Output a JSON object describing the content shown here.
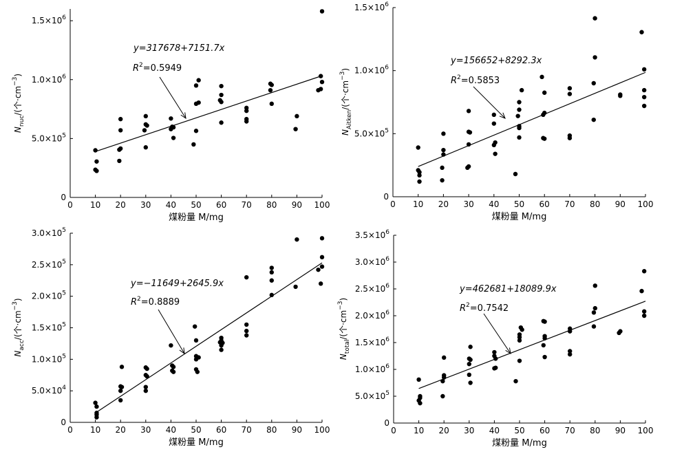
{
  "chart_data": [
    {
      "type": "scatter",
      "panel": "top-left",
      "ylabel_main": "N",
      "ylabel_sub": "nuc",
      "ylabel_rest": "/(个·cm",
      "ylabel_exp": "−3",
      "ylabel_close": ")",
      "xlabel": "煤粉量 M/mg",
      "xlim": [
        0,
        100
      ],
      "ylim": [
        0,
        1600000
      ],
      "xticks": [
        "0",
        "10",
        "20",
        "30",
        "40",
        "50",
        "60",
        "70",
        "80",
        "90",
        "100"
      ],
      "yticks": [
        {
          "value": 0,
          "mant": "0",
          "exp": ""
        },
        {
          "value": 500000,
          "mant": "5.0×10",
          "exp": "5"
        },
        {
          "value": 1000000,
          "mant": "1.0×10",
          "exp": "6"
        },
        {
          "value": 1500000,
          "mant": "1.5×10",
          "exp": "6"
        }
      ],
      "fit": {
        "intercept": 317678,
        "slope": 7151.7,
        "x_range": [
          10,
          100
        ]
      },
      "equation": "y=317678+7151.7x",
      "r2_label": "R",
      "r2_exp": "2",
      "r2_value": "=0.5949",
      "points": [
        [
          10,
          400000
        ],
        [
          10.5,
          305000
        ],
        [
          10,
          235000
        ],
        [
          10.5,
          225000
        ],
        [
          20,
          665000
        ],
        [
          20,
          570000
        ],
        [
          20,
          415000
        ],
        [
          19.5,
          405000
        ],
        [
          19.5,
          310000
        ],
        [
          30,
          690000
        ],
        [
          30,
          620000
        ],
        [
          30.5,
          610000
        ],
        [
          29.5,
          570000
        ],
        [
          30,
          425000
        ],
        [
          40,
          670000
        ],
        [
          40.5,
          600000
        ],
        [
          40,
          580000
        ],
        [
          41,
          595000
        ],
        [
          41,
          505000
        ],
        [
          51,
          995000
        ],
        [
          50,
          950000
        ],
        [
          51,
          805000
        ],
        [
          50,
          795000
        ],
        [
          50,
          565000
        ],
        [
          49,
          450000
        ],
        [
          60,
          945000
        ],
        [
          60,
          870000
        ],
        [
          59.5,
          825000
        ],
        [
          60,
          810000
        ],
        [
          60,
          635000
        ],
        [
          70,
          760000
        ],
        [
          70,
          735000
        ],
        [
          70,
          665000
        ],
        [
          70,
          645000
        ],
        [
          79.5,
          965000
        ],
        [
          79.5,
          910000
        ],
        [
          80,
          955000
        ],
        [
          80,
          795000
        ],
        [
          90,
          690000
        ],
        [
          89.5,
          580000
        ],
        [
          100,
          1580000
        ],
        [
          99.5,
          1030000
        ],
        [
          100,
          980000
        ],
        [
          99.5,
          920000
        ],
        [
          98.5,
          910000
        ]
      ]
    },
    {
      "type": "scatter",
      "panel": "top-right",
      "ylabel_main": "N",
      "ylabel_sub": "Aitken",
      "ylabel_rest": "/(个·cm",
      "ylabel_exp": "−3",
      "ylabel_close": ")",
      "xlabel": "煤粉量 M/mg",
      "xlim": [
        0,
        100
      ],
      "ylim": [
        0,
        1500000
      ],
      "xticks": [
        "0",
        "10",
        "20",
        "30",
        "40",
        "50",
        "60",
        "70",
        "80",
        "90",
        "100"
      ],
      "yticks": [
        {
          "value": 0,
          "mant": "0",
          "exp": ""
        },
        {
          "value": 500000,
          "mant": "5.0×10",
          "exp": "5"
        },
        {
          "value": 1000000,
          "mant": "1.0×10",
          "exp": "6"
        },
        {
          "value": 1500000,
          "mant": "1.5×10",
          "exp": "6"
        }
      ],
      "fit": {
        "intercept": 156652,
        "slope": 8292.3,
        "x_range": [
          10,
          100
        ]
      },
      "equation": "y=156652+8292.3x",
      "r2_label": "R",
      "r2_exp": "2",
      "r2_value": "=0.5853",
      "points": [
        [
          10,
          390000
        ],
        [
          10,
          210000
        ],
        [
          10.5,
          195000
        ],
        [
          10.5,
          170000
        ],
        [
          10.5,
          120000
        ],
        [
          20,
          500000
        ],
        [
          20,
          370000
        ],
        [
          20,
          335000
        ],
        [
          19.5,
          230000
        ],
        [
          19.5,
          130000
        ],
        [
          30,
          680000
        ],
        [
          30,
          515000
        ],
        [
          30.5,
          510000
        ],
        [
          30,
          415000
        ],
        [
          30,
          240000
        ],
        [
          29.5,
          230000
        ],
        [
          40,
          650000
        ],
        [
          40,
          580000
        ],
        [
          40.5,
          430000
        ],
        [
          40,
          410000
        ],
        [
          40.5,
          340000
        ],
        [
          51,
          845000
        ],
        [
          50,
          750000
        ],
        [
          50,
          690000
        ],
        [
          49.5,
          640000
        ],
        [
          50,
          560000
        ],
        [
          50,
          545000
        ],
        [
          50,
          470000
        ],
        [
          48.5,
          180000
        ],
        [
          59,
          950000
        ],
        [
          60,
          825000
        ],
        [
          60,
          665000
        ],
        [
          59.5,
          650000
        ],
        [
          59.5,
          465000
        ],
        [
          60,
          460000
        ],
        [
          70,
          860000
        ],
        [
          70,
          815000
        ],
        [
          70,
          485000
        ],
        [
          70,
          465000
        ],
        [
          80,
          1415000
        ],
        [
          80,
          1105000
        ],
        [
          79.5,
          900000
        ],
        [
          79.5,
          610000
        ],
        [
          90,
          810000
        ],
        [
          90,
          800000
        ],
        [
          98.5,
          1305000
        ],
        [
          99.5,
          1010000
        ],
        [
          99.5,
          845000
        ],
        [
          99.5,
          790000
        ],
        [
          99.5,
          720000
        ]
      ]
    },
    {
      "type": "scatter",
      "panel": "bottom-left",
      "ylabel_main": "N",
      "ylabel_sub": "acc",
      "ylabel_rest": "/(个·cm",
      "ylabel_exp": "−3",
      "ylabel_close": ")",
      "xlabel": "煤粉量 M/mg",
      "xlim": [
        0,
        100
      ],
      "ylim": [
        0,
        300000
      ],
      "xticks": [
        "0",
        "10",
        "20",
        "30",
        "40",
        "50",
        "60",
        "70",
        "80",
        "90",
        "100"
      ],
      "yticks": [
        {
          "value": 0,
          "mant": "0",
          "exp": ""
        },
        {
          "value": 50000,
          "mant": "5.0×10",
          "exp": "4"
        },
        {
          "value": 100000,
          "mant": "1.0×10",
          "exp": "5"
        },
        {
          "value": 150000,
          "mant": "1.5×10",
          "exp": "5"
        },
        {
          "value": 200000,
          "mant": "2.0×10",
          "exp": "5"
        },
        {
          "value": 250000,
          "mant": "2.5×10",
          "exp": "5"
        },
        {
          "value": 300000,
          "mant": "3.0×10",
          "exp": "5"
        }
      ],
      "fit": {
        "intercept": -11649,
        "slope": 2645.9,
        "x_range": [
          10,
          100
        ]
      },
      "equation": "y=−11649+2645.9x",
      "r2_label": "R",
      "r2_exp": "2",
      "r2_value": "=0.8889",
      "points": [
        [
          10,
          31000
        ],
        [
          10.5,
          25000
        ],
        [
          10.5,
          15000
        ],
        [
          10.5,
          12000
        ],
        [
          10.5,
          8000
        ],
        [
          20.5,
          88000
        ],
        [
          20,
          57000
        ],
        [
          20.5,
          56000
        ],
        [
          20,
          50000
        ],
        [
          20,
          35000
        ],
        [
          30,
          87000
        ],
        [
          30.5,
          85000
        ],
        [
          30,
          75000
        ],
        [
          30.5,
          73000
        ],
        [
          30,
          56000
        ],
        [
          30,
          50000
        ],
        [
          40,
          122000
        ],
        [
          40.5,
          90000
        ],
        [
          41,
          88000
        ],
        [
          40.5,
          82000
        ],
        [
          41,
          80000
        ],
        [
          49.5,
          152000
        ],
        [
          50,
          130000
        ],
        [
          50,
          105000
        ],
        [
          51,
          103000
        ],
        [
          50,
          100000
        ],
        [
          50,
          84000
        ],
        [
          50.5,
          80000
        ],
        [
          60,
          134000
        ],
        [
          60,
          130000
        ],
        [
          59.5,
          127000
        ],
        [
          60.5,
          126000
        ],
        [
          60,
          122000
        ],
        [
          60,
          115000
        ],
        [
          70,
          230000
        ],
        [
          70,
          155000
        ],
        [
          70,
          145000
        ],
        [
          70,
          138000
        ],
        [
          80,
          245000
        ],
        [
          80,
          238000
        ],
        [
          80,
          225000
        ],
        [
          80,
          202000
        ],
        [
          90,
          290000
        ],
        [
          89.5,
          215000
        ],
        [
          100,
          292000
        ],
        [
          100,
          262000
        ],
        [
          100,
          247000
        ],
        [
          98.5,
          242000
        ],
        [
          99.5,
          220000
        ]
      ]
    },
    {
      "type": "scatter",
      "panel": "bottom-right",
      "ylabel_main": "N",
      "ylabel_sub": "total",
      "ylabel_rest": "/(个·cm",
      "ylabel_exp": "−3",
      "ylabel_close": ")",
      "xlabel": "煤粉量 M/mg",
      "xlim": [
        0,
        100
      ],
      "ylim": [
        0,
        3500000
      ],
      "xticks": [
        "0",
        "10",
        "20",
        "30",
        "40",
        "50",
        "60",
        "70",
        "80",
        "90",
        "100"
      ],
      "yticks": [
        {
          "value": 0,
          "mant": "0",
          "exp": ""
        },
        {
          "value": 500000,
          "mant": "5.0×10",
          "exp": "5"
        },
        {
          "value": 1000000,
          "mant": "1.0×10",
          "exp": "6"
        },
        {
          "value": 1500000,
          "mant": "1.5×10",
          "exp": "6"
        },
        {
          "value": 2000000,
          "mant": "2.0×10",
          "exp": "6"
        },
        {
          "value": 2500000,
          "mant": "2.5×10",
          "exp": "6"
        },
        {
          "value": 3000000,
          "mant": "3.0×10",
          "exp": "6"
        },
        {
          "value": 3500000,
          "mant": "3.5×10",
          "exp": "6"
        }
      ],
      "fit": {
        "intercept": 462681,
        "slope": 18089.9,
        "x_range": [
          10,
          100
        ]
      },
      "equation": "y=462681+18089.9x",
      "r2_label": "R",
      "r2_exp": "2",
      "r2_value": "=0.7542",
      "points": [
        [
          10,
          810000
        ],
        [
          10.5,
          500000
        ],
        [
          10.5,
          470000
        ],
        [
          10,
          420000
        ],
        [
          10.5,
          370000
        ],
        [
          20,
          1220000
        ],
        [
          20,
          890000
        ],
        [
          20,
          850000
        ],
        [
          19.5,
          780000
        ],
        [
          19.5,
          500000
        ],
        [
          30.5,
          1420000
        ],
        [
          30,
          1200000
        ],
        [
          30.5,
          1180000
        ],
        [
          30,
          1100000
        ],
        [
          30,
          900000
        ],
        [
          30.5,
          750000
        ],
        [
          40,
          1320000
        ],
        [
          40,
          1250000
        ],
        [
          40.5,
          1200000
        ],
        [
          40,
          1020000
        ],
        [
          40.5,
          1030000
        ],
        [
          50.5,
          1780000
        ],
        [
          51,
          1740000
        ],
        [
          50,
          1650000
        ],
        [
          50,
          1600000
        ],
        [
          50,
          1540000
        ],
        [
          50,
          1160000
        ],
        [
          48.5,
          780000
        ],
        [
          59.5,
          1900000
        ],
        [
          60,
          1890000
        ],
        [
          60,
          1620000
        ],
        [
          60,
          1580000
        ],
        [
          59.5,
          1450000
        ],
        [
          60,
          1230000
        ],
        [
          70,
          1760000
        ],
        [
          70,
          1710000
        ],
        [
          70,
          1340000
        ],
        [
          70,
          1280000
        ],
        [
          80,
          2560000
        ],
        [
          80,
          2140000
        ],
        [
          79.5,
          2060000
        ],
        [
          79.5,
          1800000
        ],
        [
          90,
          1710000
        ],
        [
          89.5,
          1680000
        ],
        [
          98.5,
          2460000
        ],
        [
          99.5,
          2830000
        ],
        [
          99.5,
          2080000
        ],
        [
          99.5,
          2000000
        ]
      ]
    }
  ]
}
